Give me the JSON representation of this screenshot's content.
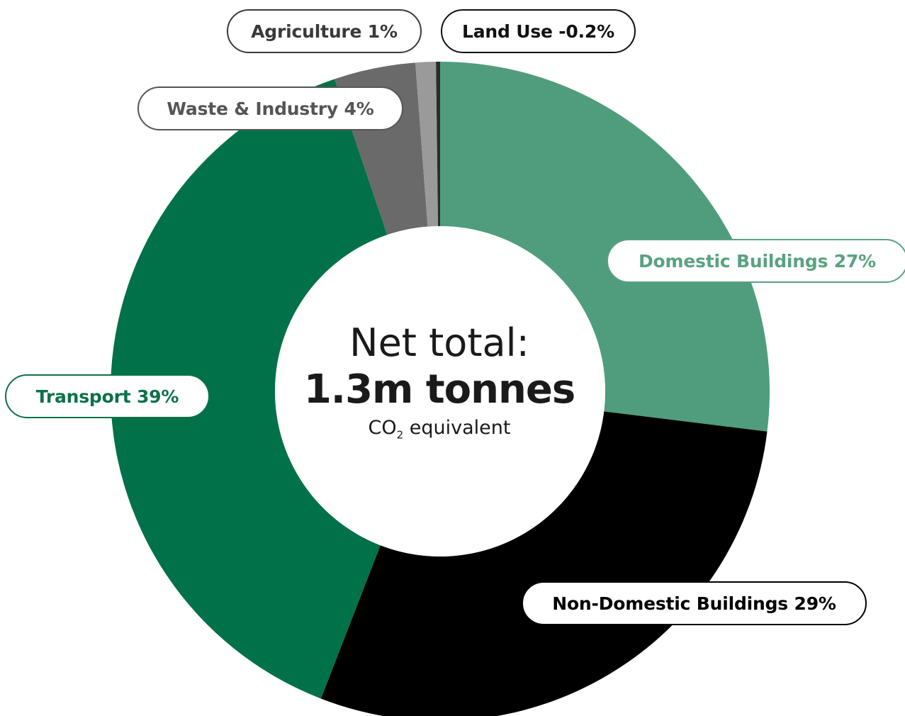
{
  "chart_data": {
    "type": "pie",
    "variant": "donut",
    "title": "",
    "center_label": {
      "line1": "Net total:",
      "line2": "1.3m tonnes",
      "line3_prefix": "CO",
      "line3_subscript": "2",
      "line3_suffix": " equivalent"
    },
    "slices": [
      {
        "label": "Domestic Buildings 27%",
        "name": "Domestic Buildings",
        "value": 27,
        "color": "#4f9d7c"
      },
      {
        "label": "Non-Domestic Buildings 29%",
        "name": "Non-Domestic Buildings",
        "value": 29,
        "color": "#000000"
      },
      {
        "label": "Transport 39%",
        "name": "Transport",
        "value": 39,
        "color": "#007148"
      },
      {
        "label": "Waste & Industry 4%",
        "name": "Waste & Industry",
        "value": 4,
        "color": "#6a6a6a"
      },
      {
        "label": "Agriculture 1%",
        "name": "Agriculture",
        "value": 1,
        "color": "#9a9a9a"
      },
      {
        "label": "Land Use -0.2%",
        "name": "Land Use",
        "value": -0.2,
        "color": "#2b2b2b"
      }
    ]
  }
}
